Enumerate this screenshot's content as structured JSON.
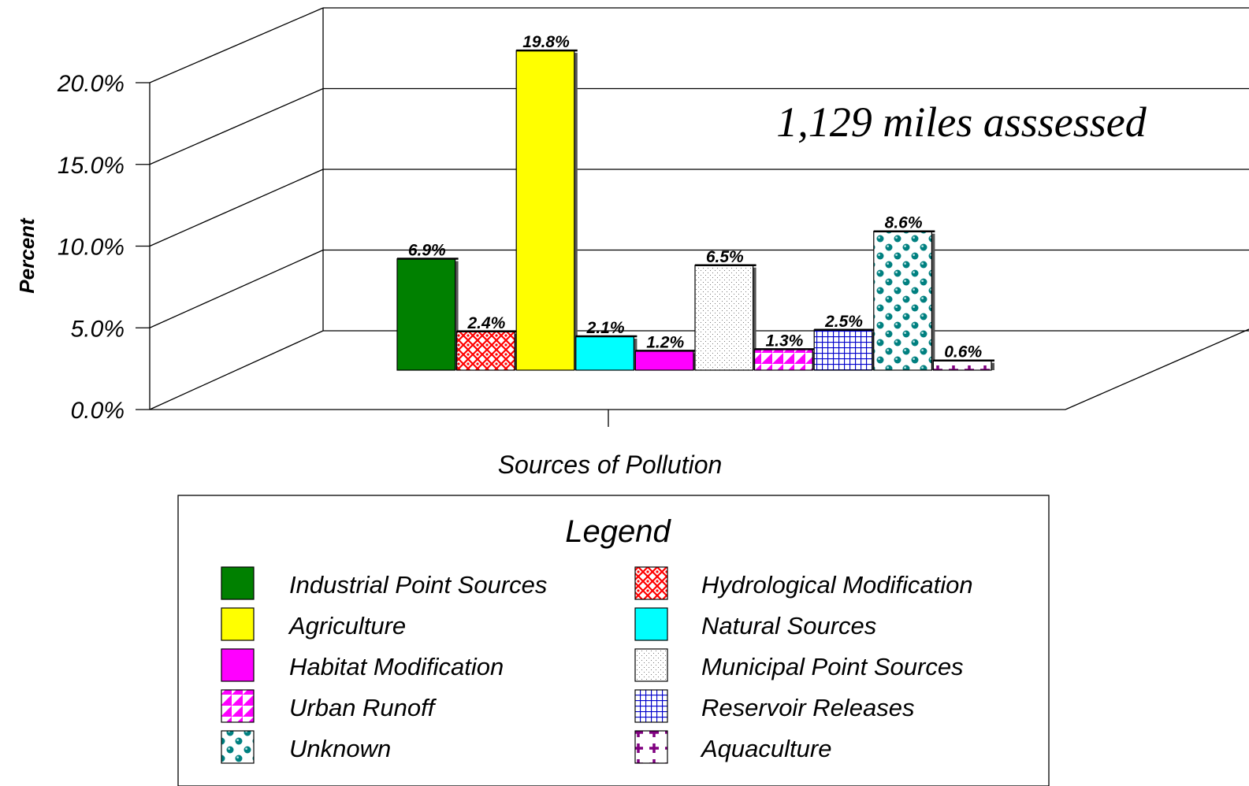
{
  "chart_data": {
    "type": "bar",
    "style": "3d",
    "annotation": "1,129 miles asssessed",
    "xlabel": "Sources of Pollution",
    "ylabel": "Percent",
    "ylim": [
      0,
      20
    ],
    "yticks": [
      "0.0%",
      "5.0%",
      "10.0%",
      "15.0%",
      "20.0%"
    ],
    "grid": true,
    "legend_title": "Legend",
    "legend_placement": "bottom",
    "series": [
      {
        "name": "Industrial Point Sources",
        "value": 6.9,
        "label": "6.9%",
        "color": "#008000",
        "pattern": "solid"
      },
      {
        "name": "Hydrological Modification",
        "value": 2.4,
        "label": "2.4%",
        "color": "#ff0000",
        "pattern": "diamond-lattice"
      },
      {
        "name": "Agriculture",
        "value": 19.8,
        "label": "19.8%",
        "color": "#ffff00",
        "pattern": "solid"
      },
      {
        "name": "Natural Sources",
        "value": 2.1,
        "label": "2.1%",
        "color": "#00ffff",
        "pattern": "solid"
      },
      {
        "name": "Habitat Modification",
        "value": 1.2,
        "label": "1.2%",
        "color": "#ff00ff",
        "pattern": "solid"
      },
      {
        "name": "Municipal Point Sources",
        "value": 6.5,
        "label": "6.5%",
        "color": "#bbbbbb",
        "pattern": "dots"
      },
      {
        "name": "Urban Runoff",
        "value": 1.3,
        "label": "1.3%",
        "color": "#ff00ff",
        "pattern": "triangles"
      },
      {
        "name": "Reservoir Releases",
        "value": 2.5,
        "label": "2.5%",
        "color": "#0000cc",
        "pattern": "grid"
      },
      {
        "name": "Unknown",
        "value": 8.6,
        "label": "8.6%",
        "color": "#008080",
        "pattern": "spheres"
      },
      {
        "name": "Aquaculture",
        "value": 0.6,
        "label": "0.6%",
        "color": "#800080",
        "pattern": "plus"
      }
    ]
  }
}
